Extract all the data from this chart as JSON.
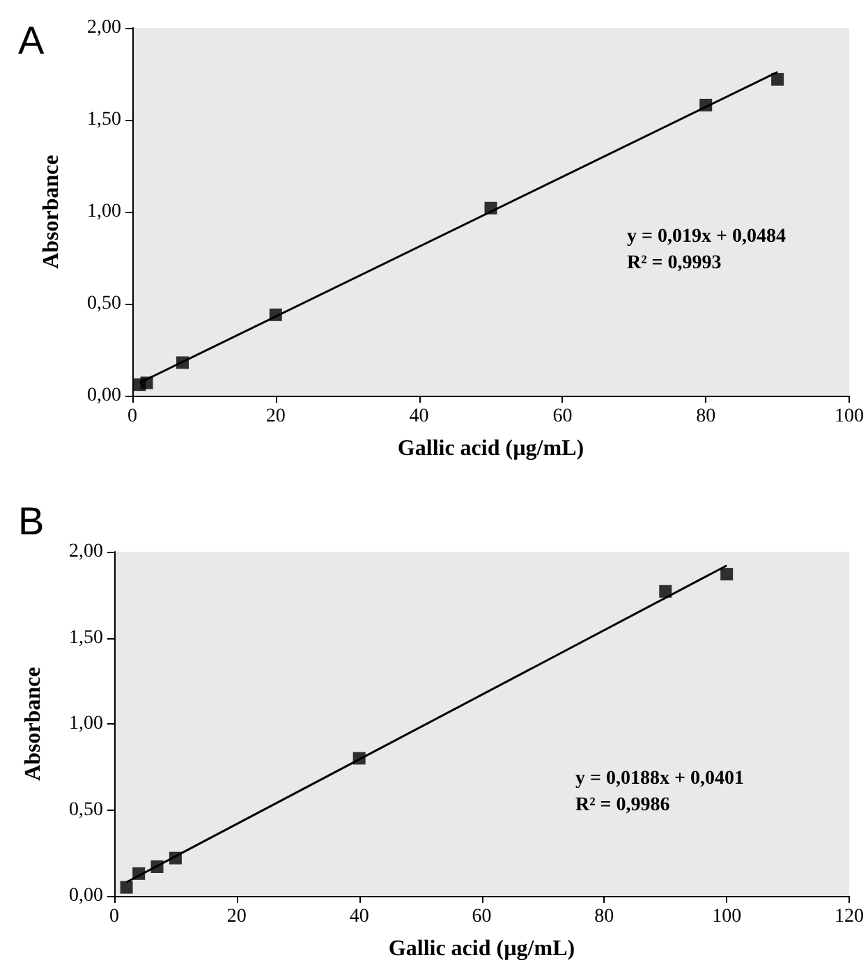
{
  "chart_data": [
    {
      "type": "scatter",
      "title": "A",
      "xlabel": "Gallic acid (µg/mL)",
      "ylabel": "Absorbance",
      "xlim": [
        0,
        100
      ],
      "xticks": [
        0,
        20,
        40,
        60,
        80,
        100
      ],
      "ylim": [
        0,
        2
      ],
      "yticks": [
        {
          "value": 0,
          "label": "0,00"
        },
        {
          "value": 0.5,
          "label": "0,50"
        },
        {
          "value": 1,
          "label": "1,00"
        },
        {
          "value": 1.5,
          "label": "1,50"
        },
        {
          "value": 2,
          "label": "2,00"
        }
      ],
      "grid": false,
      "series": [
        {
          "marker": "square",
          "color": "#000000",
          "x": [
            1,
            2,
            7,
            20,
            50,
            80,
            90
          ],
          "values": [
            0.06,
            0.07,
            0.18,
            0.44,
            1.02,
            1.58,
            1.72
          ]
        },
        {
          "type": "line",
          "marker": "none",
          "line_style": "solid",
          "color": "#000000",
          "x": [
            1,
            90
          ],
          "values": [
            0.07,
            1.76
          ]
        }
      ],
      "annotations": [
        "y = 0,019x + 0,0484",
        "R² = 0,9993"
      ]
    },
    {
      "type": "scatter",
      "title": "B",
      "xlabel": "Gallic acid (µg/mL)",
      "ylabel": "Absorbance",
      "xlim": [
        0,
        120
      ],
      "xticks": [
        0,
        20,
        40,
        60,
        80,
        100,
        120
      ],
      "ylim": [
        0,
        2
      ],
      "yticks": [
        {
          "value": 0,
          "label": "0,00"
        },
        {
          "value": 0.5,
          "label": "0,50"
        },
        {
          "value": 1,
          "label": "1,00"
        },
        {
          "value": 1.5,
          "label": "1,50"
        },
        {
          "value": 2,
          "label": "2,00"
        }
      ],
      "grid": false,
      "series": [
        {
          "marker": "square",
          "color": "#000000",
          "x": [
            2,
            4,
            7,
            10,
            40,
            90,
            100
          ],
          "values": [
            0.05,
            0.13,
            0.17,
            0.22,
            0.8,
            1.77,
            1.87
          ]
        },
        {
          "type": "line",
          "marker": "none",
          "line_style": "solid",
          "color": "#000000",
          "x": [
            2,
            100
          ],
          "values": [
            0.08,
            1.92
          ]
        }
      ],
      "annotations": [
        "y = 0,0188x + 0,0401",
        "R² = 0,9986"
      ]
    }
  ]
}
